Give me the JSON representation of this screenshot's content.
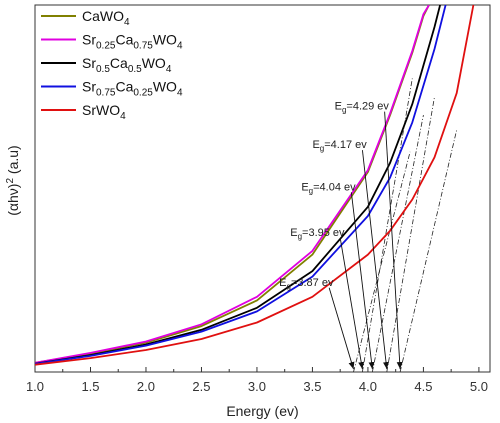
{
  "chart_data": {
    "type": "line",
    "xlabel": "Energy (ev)",
    "ylabel_main": "(αhν)",
    "ylabel_sup": "2",
    "ylabel_unit": " (a.u)",
    "xlim": [
      1.0,
      5.1
    ],
    "ylim": [
      0,
      100
    ],
    "xticks": [
      "1.0",
      "1.5",
      "2.0",
      "2.5",
      "3.0",
      "3.5",
      "4.0",
      "4.5",
      "5.0"
    ],
    "legend_position": "top-left",
    "series": [
      {
        "name": "CaWO4",
        "legend_parts": [
          {
            "t": "CaWO",
            "s": false
          },
          {
            "t": "4",
            "s": true
          }
        ],
        "color": "#808000",
        "x": [
          1.0,
          1.5,
          2.0,
          2.5,
          3.0,
          3.5,
          4.0,
          4.2,
          4.4,
          4.5,
          4.55
        ],
        "y": [
          2.5,
          5.0,
          8.0,
          12.5,
          19.5,
          32.0,
          54.5,
          70.0,
          87.0,
          97.0,
          100
        ]
      },
      {
        "name": "Sr0.25Ca0.75WO4",
        "legend_parts": [
          {
            "t": "Sr",
            "s": false
          },
          {
            "t": "0.25",
            "s": true
          },
          {
            "t": "Ca",
            "s": false
          },
          {
            "t": "0.75",
            "s": true
          },
          {
            "t": "WO",
            "s": false
          },
          {
            "t": "4",
            "s": true
          }
        ],
        "color": "#e000e0",
        "x": [
          1.0,
          1.5,
          2.0,
          2.5,
          3.0,
          3.5,
          4.0,
          4.2,
          4.4,
          4.5,
          4.55
        ],
        "y": [
          2.5,
          5.2,
          8.3,
          13.0,
          20.5,
          33.0,
          55.0,
          70.5,
          87.5,
          97.5,
          100
        ]
      },
      {
        "name": "Sr0.5Ca0.5WO4",
        "legend_parts": [
          {
            "t": "Sr",
            "s": false
          },
          {
            "t": "0.5",
            "s": true
          },
          {
            "t": "Ca",
            "s": false
          },
          {
            "t": "0.5",
            "s": true
          },
          {
            "t": "WO",
            "s": false
          },
          {
            "t": "4",
            "s": true
          }
        ],
        "color": "#000000",
        "x": [
          1.0,
          1.5,
          2.0,
          2.5,
          3.0,
          3.5,
          4.0,
          4.2,
          4.4,
          4.6,
          4.65
        ],
        "y": [
          2.3,
          4.6,
          7.5,
          11.5,
          17.5,
          27.5,
          45.0,
          57.0,
          73.0,
          94.0,
          100
        ]
      },
      {
        "name": "Sr0.75Ca0.25WO4",
        "legend_parts": [
          {
            "t": "Sr",
            "s": false
          },
          {
            "t": "0.75",
            "s": true
          },
          {
            "t": "Ca",
            "s": false
          },
          {
            "t": "0.25",
            "s": true
          },
          {
            "t": "WO",
            "s": false
          },
          {
            "t": "4",
            "s": true
          }
        ],
        "color": "#1010e0",
        "x": [
          1.0,
          1.5,
          2.0,
          2.5,
          3.0,
          3.5,
          4.0,
          4.2,
          4.4,
          4.6,
          4.7
        ],
        "y": [
          2.2,
          4.4,
          7.2,
          11.0,
          16.5,
          26.0,
          42.5,
          53.0,
          68.0,
          88.0,
          100
        ]
      },
      {
        "name": "SrWO4",
        "legend_parts": [
          {
            "t": "SrWO",
            "s": false
          },
          {
            "t": "4",
            "s": true
          }
        ],
        "color": "#e01010",
        "x": [
          1.0,
          1.5,
          2.0,
          2.5,
          3.0,
          3.5,
          4.0,
          4.2,
          4.4,
          4.6,
          4.8,
          4.95
        ],
        "y": [
          2.0,
          3.8,
          6.0,
          9.0,
          13.5,
          20.5,
          32.0,
          38.5,
          47.0,
          58.5,
          76.0,
          100
        ]
      }
    ],
    "annotations": [
      {
        "label_main": "E",
        "label_sub": "g",
        "label_rest": "=3.87 ev",
        "text_at": [
          3.2,
          23.5
        ],
        "arrow_to": [
          3.87,
          0.8
        ]
      },
      {
        "label_main": "E",
        "label_sub": "g",
        "label_rest": "=3.95 ev",
        "text_at": [
          3.3,
          37.0
        ],
        "arrow_to": [
          3.95,
          0.8
        ]
      },
      {
        "label_main": "E",
        "label_sub": "g",
        "label_rest": "=4.04 ev",
        "text_at": [
          3.4,
          49.5
        ],
        "arrow_to": [
          4.04,
          0.8
        ]
      },
      {
        "label_main": "E",
        "label_sub": "g",
        "label_rest": "=4.17 ev",
        "text_at": [
          3.5,
          61.0
        ],
        "arrow_to": [
          4.17,
          0.8
        ]
      },
      {
        "label_main": "E",
        "label_sub": "g",
        "label_rest": "=4.29 ev",
        "text_at": [
          3.7,
          71.5
        ],
        "arrow_to": [
          4.29,
          0.8
        ]
      }
    ],
    "tangent_lines": [
      {
        "x0": 3.87,
        "x1": 4.38,
        "y1": 60.0
      },
      {
        "x0": 3.95,
        "x1": 4.4,
        "y1": 80.0
      },
      {
        "x0": 4.04,
        "x1": 4.5,
        "y1": 70.0
      },
      {
        "x0": 4.17,
        "x1": 4.6,
        "y1": 75.0
      },
      {
        "x0": 4.29,
        "x1": 4.8,
        "y1": 66.0
      }
    ]
  }
}
